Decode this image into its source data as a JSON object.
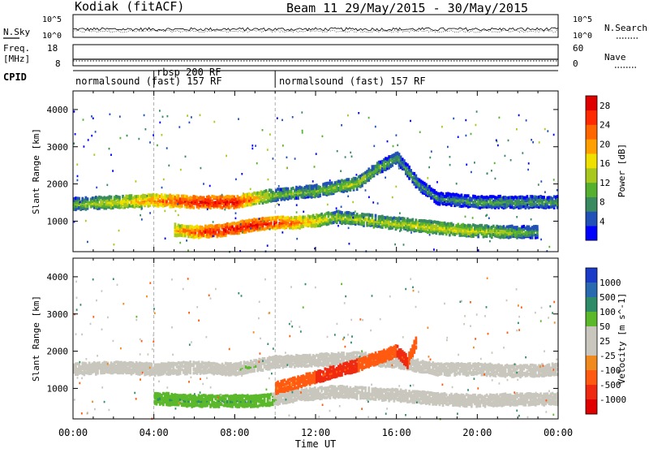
{
  "header": {
    "station": "Kodiak (fitACF)",
    "beam_date": "Beam 11  29/May/2015 - 30/May/2015"
  },
  "panel_labels": {
    "nsky": "N.Sky",
    "freq_line1": "Freq.",
    "freq_line2": "[MHz]",
    "cpid": "CPID",
    "nsearch": "N.Search",
    "nave": "Nave"
  },
  "noise_axis": {
    "left_top": "10^5",
    "left_bottom": "10^0",
    "right_top": "10^5",
    "right_bottom": "10^0"
  },
  "freq_axis": {
    "left_top": "18",
    "left_bottom": "8",
    "right_top": "60",
    "right_bottom": "0"
  },
  "cpid_segments": [
    {
      "label": "normalsound (fast) 157 RF",
      "start_h": 0,
      "end_h": 4
    },
    {
      "label": "rbsp 200 RF",
      "start_h": 4,
      "end_h": 10
    },
    {
      "label": "normalsound (fast) 157 RF",
      "start_h": 10,
      "end_h": 24
    }
  ],
  "footer": {
    "xlabel": "Time UT"
  },
  "colors": {
    "power_scale": [
      "#0000ff",
      "#2050b8",
      "#3a8a60",
      "#55b030",
      "#a8c81e",
      "#f0e000",
      "#ffa000",
      "#ff6600",
      "#ff2a00",
      "#e00000"
    ],
    "velocity_scale": [
      "#1a3cc8",
      "#2a6ab0",
      "#2f8c68",
      "#5ab82a",
      "#c9c7bd",
      "#c9c7bd",
      "#f08a1e",
      "#ff5a10",
      "#f02a10",
      "#e00000"
    ]
  },
  "chart_data": [
    {
      "type": "heatmap",
      "title": "",
      "xlabel": "Time UT",
      "ylabel": "Slant Range [km]",
      "x_ticks": [
        "00:00",
        "04:00",
        "08:00",
        "12:00",
        "16:00",
        "20:00",
        "00:00"
      ],
      "xlim_hours": [
        0,
        24
      ],
      "y_ticks": [
        1000,
        2000,
        3000,
        4000
      ],
      "ylim_km": [
        180,
        4500
      ],
      "colorbar": {
        "label": "Power [dB]",
        "ticks": [
          4,
          8,
          12,
          16,
          20,
          24,
          28
        ],
        "range": [
          0,
          30
        ]
      },
      "series": [
        {
          "name": "",
          "points": [
            [
              0,
              1450,
              12
            ],
            [
              2,
              1500,
              16
            ],
            [
              4,
              1550,
              22
            ],
            [
              6,
              1500,
              28
            ],
            [
              8,
              1500,
              28
            ],
            [
              9,
              1600,
              20
            ],
            [
              10,
              1700,
              12
            ],
            [
              12,
              1800,
              12
            ],
            [
              14,
              2000,
              14
            ],
            [
              15,
              2400,
              12
            ],
            [
              16,
              2700,
              10
            ],
            [
              17,
              2000,
              10
            ],
            [
              18,
              1600,
              8
            ],
            [
              20,
              1500,
              10
            ],
            [
              22,
              1500,
              10
            ],
            [
              24,
              1500,
              10
            ]
          ]
        },
        {
          "name": "",
          "points": [
            [
              5,
              750,
              20
            ],
            [
              6,
              700,
              24
            ],
            [
              7,
              720,
              28
            ],
            [
              8,
              800,
              28
            ],
            [
              9,
              900,
              28
            ],
            [
              10,
              950,
              26
            ],
            [
              11,
              950,
              22
            ],
            [
              12,
              1000,
              18
            ],
            [
              13,
              1100,
              14
            ],
            [
              19,
              750,
              16
            ],
            [
              21,
              700,
              14
            ],
            [
              23,
              700,
              10
            ]
          ]
        }
      ]
    },
    {
      "type": "heatmap",
      "title": "",
      "xlabel": "Time UT",
      "ylabel": "Slant Range [km]",
      "x_ticks": [
        "00:00",
        "04:00",
        "08:00",
        "12:00",
        "16:00",
        "20:00",
        "00:00"
      ],
      "xlim_hours": [
        0,
        24
      ],
      "y_ticks": [
        1000,
        2000,
        3000,
        4000
      ],
      "ylim_km": [
        180,
        4500
      ],
      "colorbar": {
        "label": "Velocity [m s^-1]",
        "ticks": [
          1000,
          500,
          100,
          50,
          25,
          -25,
          -100,
          -500,
          -1000
        ]
      },
      "series": [
        {
          "name": "",
          "points": [
            [
              0,
              1500,
              0
            ],
            [
              2,
              1550,
              0
            ],
            [
              4,
              1500,
              0
            ],
            [
              6,
              1550,
              0
            ],
            [
              8,
              1500,
              50
            ],
            [
              9,
              1600,
              50
            ],
            [
              10,
              1700,
              0
            ],
            [
              14,
              1800,
              0
            ],
            [
              16,
              1700,
              0
            ],
            [
              18,
              1500,
              0
            ],
            [
              20,
              1500,
              0
            ],
            [
              22,
              1450,
              0
            ],
            [
              24,
              1500,
              0
            ]
          ]
        },
        {
          "name": "",
          "points": [
            [
              4,
              720,
              100
            ],
            [
              6,
              650,
              100
            ],
            [
              8,
              650,
              100
            ],
            [
              9,
              650,
              100
            ],
            [
              10,
              700,
              50
            ],
            [
              11,
              800,
              0
            ],
            [
              13,
              900,
              0
            ],
            [
              16,
              800,
              0
            ],
            [
              18,
              700,
              0
            ],
            [
              20,
              650,
              0
            ],
            [
              22,
              700,
              0
            ],
            [
              24,
              700,
              0
            ]
          ]
        },
        {
          "name": "",
          "points": [
            [
              10,
              1000,
              -100
            ],
            [
              11,
              1150,
              -100
            ],
            [
              12,
              1300,
              -500
            ],
            [
              13,
              1450,
              -500
            ],
            [
              14,
              1600,
              -500
            ],
            [
              15,
              1800,
              -100
            ],
            [
              16,
              2000,
              -500
            ],
            [
              17,
              2300,
              -100
            ],
            [
              16.5,
              1700,
              -500
            ]
          ]
        }
      ]
    }
  ]
}
